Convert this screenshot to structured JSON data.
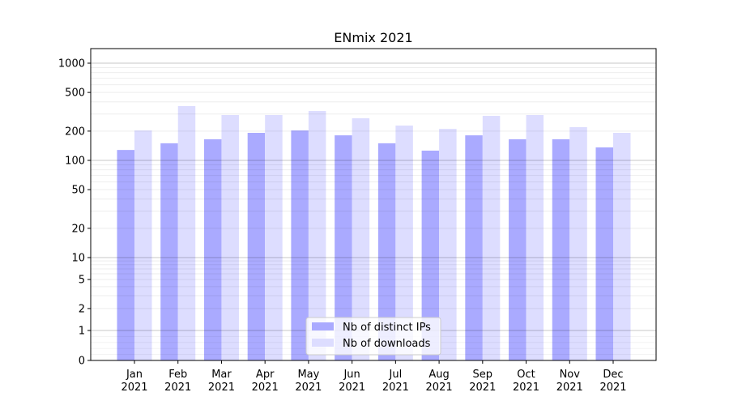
{
  "chart_data": {
    "type": "bar",
    "title": "ENmix 2021",
    "xlabel": "",
    "ylabel": "",
    "yscale": "symlog",
    "ylim": [
      0,
      1400
    ],
    "yticks": [
      0,
      1,
      2,
      5,
      10,
      20,
      50,
      100,
      200,
      500,
      1000
    ],
    "grid": true,
    "legend_position": "bottom-center",
    "categories": [
      "Jan\n2021",
      "Feb\n2021",
      "Mar\n2021",
      "Apr\n2021",
      "May\n2021",
      "Jun\n2021",
      "Jul\n2021",
      "Aug\n2021",
      "Sep\n2021",
      "Oct\n2021",
      "Nov\n2021",
      "Dec\n2021"
    ],
    "series": [
      {
        "name": "Nb of distinct IPs",
        "color": "#aaaaff",
        "values": [
          128,
          150,
          165,
          192,
          203,
          181,
          150,
          126,
          181,
          165,
          165,
          136
        ]
      },
      {
        "name": "Nb of downloads",
        "color": "#ddddff",
        "values": [
          203,
          362,
          293,
          293,
          322,
          271,
          228,
          211,
          287,
          293,
          220,
          192
        ]
      }
    ]
  }
}
